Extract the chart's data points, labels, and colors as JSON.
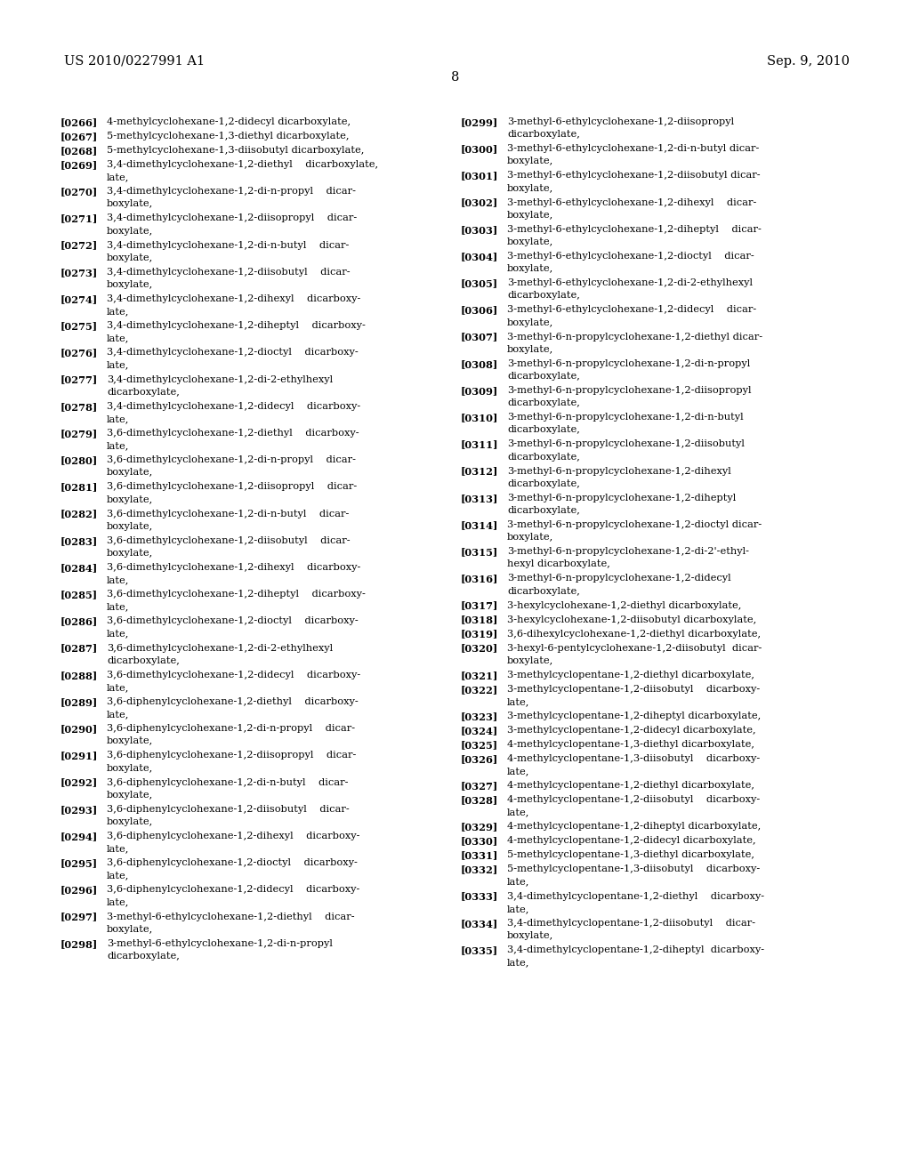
{
  "background_color": "#ffffff",
  "header_left": "US 2010/0227991 A1",
  "header_right": "Sep. 9, 2010",
  "page_number": "8",
  "left_column": [
    {
      "lines": [
        "[0266]",
        "4-methylcyclohexane-1,2-didecyl dicarboxylate,"
      ]
    },
    {
      "lines": [
        "[0267]",
        "5-methylcyclohexane-1,3-diethyl dicarboxylate,"
      ]
    },
    {
      "lines": [
        "[0268]",
        "5-methylcyclohexane-1,3-diisobutyl dicarboxylate,"
      ]
    },
    {
      "lines": [
        "[0269]",
        "3,4-dimethylcyclohexane-1,2-diethyl    dicarboxylate,",
        "late,"
      ]
    },
    {
      "lines": [
        "[0270]",
        "3,4-dimethylcyclohexane-1,2-di-n-propyl    dicar-",
        "boxylate,"
      ]
    },
    {
      "lines": [
        "[0271]",
        "3,4-dimethylcyclohexane-1,2-diisopropyl    dicar-",
        "boxylate,"
      ]
    },
    {
      "lines": [
        "[0272]",
        "3,4-dimethylcyclohexane-1,2-di-n-butyl    dicar-",
        "boxylate,"
      ]
    },
    {
      "lines": [
        "[0273]",
        "3,4-dimethylcyclohexane-1,2-diisobutyl    dicar-",
        "boxylate,"
      ]
    },
    {
      "lines": [
        "[0274]",
        "3,4-dimethylcyclohexane-1,2-dihexyl    dicarboxy-",
        "late,"
      ]
    },
    {
      "lines": [
        "[0275]",
        "3,4-dimethylcyclohexane-1,2-diheptyl    dicarboxy-",
        "late,"
      ]
    },
    {
      "lines": [
        "[0276]",
        "3,4-dimethylcyclohexane-1,2-dioctyl    dicarboxy-",
        "late,"
      ]
    },
    {
      "lines": [
        "[0277]",
        "3,4-dimethylcyclohexane-1,2-di-2-ethylhexyl",
        "dicarboxylate,"
      ]
    },
    {
      "lines": [
        "[0278]",
        "3,4-dimethylcyclohexane-1,2-didecyl    dicarboxy-",
        "late,"
      ]
    },
    {
      "lines": [
        "[0279]",
        "3,6-dimethylcyclohexane-1,2-diethyl    dicarboxy-",
        "late,"
      ]
    },
    {
      "lines": [
        "[0280]",
        "3,6-dimethylcyclohexane-1,2-di-n-propyl    dicar-",
        "boxylate,"
      ]
    },
    {
      "lines": [
        "[0281]",
        "3,6-dimethylcyclohexane-1,2-diisopropyl    dicar-",
        "boxylate,"
      ]
    },
    {
      "lines": [
        "[0282]",
        "3,6-dimethylcyclohexane-1,2-di-n-butyl    dicar-",
        "boxylate,"
      ]
    },
    {
      "lines": [
        "[0283]",
        "3,6-dimethylcyclohexane-1,2-diisobutyl    dicar-",
        "boxylate,"
      ]
    },
    {
      "lines": [
        "[0284]",
        "3,6-dimethylcyclohexane-1,2-dihexyl    dicarboxy-",
        "late,"
      ]
    },
    {
      "lines": [
        "[0285]",
        "3,6-dimethylcyclohexane-1,2-diheptyl    dicarboxy-",
        "late,"
      ]
    },
    {
      "lines": [
        "[0286]",
        "3,6-dimethylcyclohexane-1,2-dioctyl    dicarboxy-",
        "late,"
      ]
    },
    {
      "lines": [
        "[0287]",
        "3,6-dimethylcyclohexane-1,2-di-2-ethylhexyl",
        "dicarboxylate,"
      ]
    },
    {
      "lines": [
        "[0288]",
        "3,6-dimethylcyclohexane-1,2-didecyl    dicarboxy-",
        "late,"
      ]
    },
    {
      "lines": [
        "[0289]",
        "3,6-diphenylcyclohexane-1,2-diethyl    dicarboxy-",
        "late,"
      ]
    },
    {
      "lines": [
        "[0290]",
        "3,6-diphenylcyclohexane-1,2-di-n-propyl    dicar-",
        "boxylate,"
      ]
    },
    {
      "lines": [
        "[0291]",
        "3,6-diphenylcyclohexane-1,2-diisopropyl    dicar-",
        "boxylate,"
      ]
    },
    {
      "lines": [
        "[0292]",
        "3,6-diphenylcyclohexane-1,2-di-n-butyl    dicar-",
        "boxylate,"
      ]
    },
    {
      "lines": [
        "[0293]",
        "3,6-diphenylcyclohexane-1,2-diisobutyl    dicar-",
        "boxylate,"
      ]
    },
    {
      "lines": [
        "[0294]",
        "3,6-diphenylcyclohexane-1,2-dihexyl    dicarboxy-",
        "late,"
      ]
    },
    {
      "lines": [
        "[0295]",
        "3,6-diphenylcyclohexane-1,2-dioctyl    dicarboxy-",
        "late,"
      ]
    },
    {
      "lines": [
        "[0296]",
        "3,6-diphenylcyclohexane-1,2-didecyl    dicarboxy-",
        "late,"
      ]
    },
    {
      "lines": [
        "[0297]",
        "3-methyl-6-ethylcyclohexane-1,2-diethyl    dicar-",
        "boxylate,"
      ]
    },
    {
      "lines": [
        "[0298]",
        "3-methyl-6-ethylcyclohexane-1,2-di-n-propyl",
        "dicarboxylate,"
      ]
    }
  ],
  "right_column": [
    {
      "lines": [
        "[0299]",
        "3-methyl-6-ethylcyclohexane-1,2-diisopropyl",
        "dicarboxylate,"
      ]
    },
    {
      "lines": [
        "[0300]",
        "3-methyl-6-ethylcyclohexane-1,2-di-n-butyl dicar-",
        "boxylate,"
      ]
    },
    {
      "lines": [
        "[0301]",
        "3-methyl-6-ethylcyclohexane-1,2-diisobutyl dicar-",
        "boxylate,"
      ]
    },
    {
      "lines": [
        "[0302]",
        "3-methyl-6-ethylcyclohexane-1,2-dihexyl    dicar-",
        "boxylate,"
      ]
    },
    {
      "lines": [
        "[0303]",
        "3-methyl-6-ethylcyclohexane-1,2-diheptyl    dicar-",
        "boxylate,"
      ]
    },
    {
      "lines": [
        "[0304]",
        "3-methyl-6-ethylcyclohexane-1,2-dioctyl    dicar-",
        "boxylate,"
      ]
    },
    {
      "lines": [
        "[0305]",
        "3-methyl-6-ethylcyclohexane-1,2-di-2-ethylhexyl",
        "dicarboxylate,"
      ]
    },
    {
      "lines": [
        "[0306]",
        "3-methyl-6-ethylcyclohexane-1,2-didecyl    dicar-",
        "boxylate,"
      ]
    },
    {
      "lines": [
        "[0307]",
        "3-methyl-6-n-propylcyclohexane-1,2-diethyl dicar-",
        "boxylate,"
      ]
    },
    {
      "lines": [
        "[0308]",
        "3-methyl-6-n-propylcyclohexane-1,2-di-n-propyl",
        "dicarboxylate,"
      ]
    },
    {
      "lines": [
        "[0309]",
        "3-methyl-6-n-propylcyclohexane-1,2-diisopropyl",
        "dicarboxylate,"
      ]
    },
    {
      "lines": [
        "[0310]",
        "3-methyl-6-n-propylcyclohexane-1,2-di-n-butyl",
        "dicarboxylate,"
      ]
    },
    {
      "lines": [
        "[0311]",
        "3-methyl-6-n-propylcyclohexane-1,2-diisobutyl",
        "dicarboxylate,"
      ]
    },
    {
      "lines": [
        "[0312]",
        "3-methyl-6-n-propylcyclohexane-1,2-dihexyl",
        "dicarboxylate,"
      ]
    },
    {
      "lines": [
        "[0313]",
        "3-methyl-6-n-propylcyclohexane-1,2-diheptyl",
        "dicarboxylate,"
      ]
    },
    {
      "lines": [
        "[0314]",
        "3-methyl-6-n-propylcyclohexane-1,2-dioctyl dicar-",
        "boxylate,"
      ]
    },
    {
      "lines": [
        "[0315]",
        "3-methyl-6-n-propylcyclohexane-1,2-di-2'-ethyl-",
        "hexyl dicarboxylate,"
      ]
    },
    {
      "lines": [
        "[0316]",
        "3-methyl-6-n-propylcyclohexane-1,2-didecyl",
        "dicarboxylate,"
      ]
    },
    {
      "lines": [
        "[0317]",
        "3-hexylcyclohexane-1,2-diethyl dicarboxylate,"
      ]
    },
    {
      "lines": [
        "[0318]",
        "3-hexylcyclohexane-1,2-diisobutyl dicarboxylate,"
      ]
    },
    {
      "lines": [
        "[0319]",
        "3,6-dihexylcyclohexane-1,2-diethyl dicarboxylate,"
      ]
    },
    {
      "lines": [
        "[0320]",
        "3-hexyl-6-pentylcyclohexane-1,2-diisobutyl  dicar-",
        "boxylate,"
      ]
    },
    {
      "lines": [
        "[0321]",
        "3-methylcyclopentane-1,2-diethyl dicarboxylate,"
      ]
    },
    {
      "lines": [
        "[0322]",
        "3-methylcyclopentane-1,2-diisobutyl    dicarboxy-",
        "late,"
      ]
    },
    {
      "lines": [
        "[0323]",
        "3-methylcyclopentane-1,2-diheptyl dicarboxylate,"
      ]
    },
    {
      "lines": [
        "[0324]",
        "3-methylcyclopentane-1,2-didecyl dicarboxylate,"
      ]
    },
    {
      "lines": [
        "[0325]",
        "4-methylcyclopentane-1,3-diethyl dicarboxylate,"
      ]
    },
    {
      "lines": [
        "[0326]",
        "4-methylcyclopentane-1,3-diisobutyl    dicarboxy-",
        "late,"
      ]
    },
    {
      "lines": [
        "[0327]",
        "4-methylcyclopentane-1,2-diethyl dicarboxylate,"
      ]
    },
    {
      "lines": [
        "[0328]",
        "4-methylcyclopentane-1,2-diisobutyl    dicarboxy-",
        "late,"
      ]
    },
    {
      "lines": [
        "[0329]",
        "4-methylcyclopentane-1,2-diheptyl dicarboxylate,"
      ]
    },
    {
      "lines": [
        "[0330]",
        "4-methylcyclopentane-1,2-didecyl dicarboxylate,"
      ]
    },
    {
      "lines": [
        "[0331]",
        "5-methylcyclopentane-1,3-diethyl dicarboxylate,"
      ]
    },
    {
      "lines": [
        "[0332]",
        "5-methylcyclopentane-1,3-diisobutyl    dicarboxy-",
        "late,"
      ]
    },
    {
      "lines": [
        "[0333]",
        "3,4-dimethylcyclopentane-1,2-diethyl    dicarboxy-",
        "late,"
      ]
    },
    {
      "lines": [
        "[0334]",
        "3,4-dimethylcyclopentane-1,2-diisobutyl    dicar-",
        "boxylate,"
      ]
    },
    {
      "lines": [
        "[0335]",
        "3,4-dimethylcyclopentane-1,2-diheptyl  dicarboxy-",
        "late,"
      ]
    }
  ],
  "font_size_header": 10.5,
  "font_size_text": 8.2,
  "font_size_page": 10.5
}
